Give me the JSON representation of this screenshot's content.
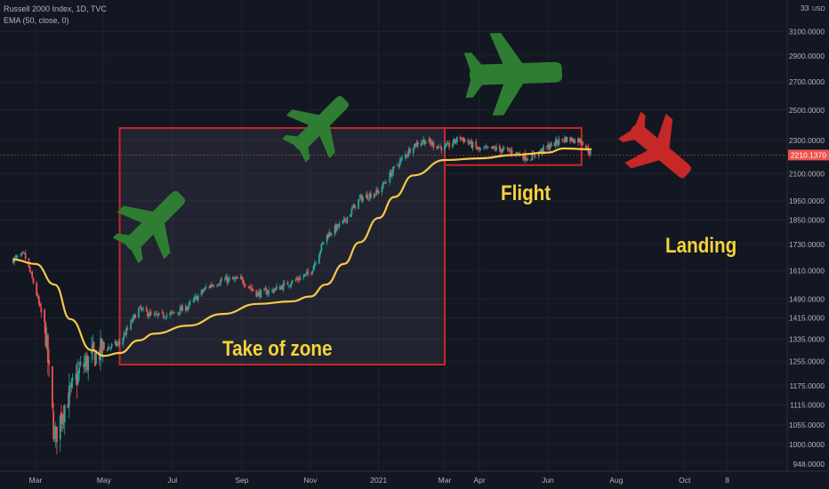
{
  "legend": {
    "symbol_line": "Russell 2000 Index, 1D, TVC",
    "indicator_line": "EMA (50, close, 0)"
  },
  "annotations": {
    "takeoff": "Take of zone",
    "flight": "Flight",
    "landing": "Landing"
  },
  "colors": {
    "background": "#131722",
    "candle_up": "#26a69a",
    "candle_down": "#ef5350",
    "ema": "#f7c948",
    "box": "#c62828",
    "plane_green": "#2e7d32",
    "plane_red": "#c62828",
    "annotation_text": "#f5d33c",
    "price_label_bg": "#ef5350"
  },
  "chart_data": {
    "type": "candlestick",
    "title": "Russell 2000 Index, 1D, TVC",
    "indicator": "EMA (50, close, 0)",
    "price_axis": {
      "currency": "USD",
      "top_label": "33",
      "ticks": [
        "3100.0000",
        "2900.0000",
        "2700.0000",
        "2500.0000",
        "2300.0000",
        "2100.0000",
        "1950.0000",
        "1850.0000",
        "1730.0000",
        "1610.0000",
        "1490.0000",
        "1415.0000",
        "1335.0000",
        "1255.0000",
        "1175.0000",
        "1115.0000",
        "1055.0000",
        "1000.0000",
        "948.0000"
      ],
      "scale": "log"
    },
    "time_axis": {
      "ticks": [
        "Mar",
        "May",
        "Jul",
        "Sep",
        "Nov",
        "2021",
        "Mar",
        "Apr",
        "Jun",
        "Aug",
        "Oct",
        "8"
      ]
    },
    "last_price": "2210.1370",
    "close_series": {
      "dates": [
        "2020-02-10",
        "2020-02-20",
        "2020-03-01",
        "2020-03-10",
        "2020-03-18",
        "2020-03-25",
        "2020-04-01",
        "2020-04-10",
        "2020-04-20",
        "2020-05-01",
        "2020-05-15",
        "2020-06-01",
        "2020-06-15",
        "2020-07-01",
        "2020-07-15",
        "2020-08-01",
        "2020-08-15",
        "2020-09-01",
        "2020-09-15",
        "2020-10-01",
        "2020-10-15",
        "2020-11-01",
        "2020-11-15",
        "2020-12-01",
        "2020-12-15",
        "2021-01-01",
        "2021-01-15",
        "2021-02-01",
        "2021-02-10",
        "2021-03-01",
        "2021-03-15",
        "2021-04-01",
        "2021-04-15",
        "2021-05-01",
        "2021-05-15",
        "2021-06-01",
        "2021-06-15",
        "2021-07-01",
        "2021-07-10"
      ],
      "values": [
        1660,
        1680,
        1530,
        1350,
        1010,
        1100,
        1150,
        1230,
        1270,
        1300,
        1320,
        1450,
        1420,
        1430,
        1460,
        1540,
        1570,
        1570,
        1510,
        1530,
        1560,
        1600,
        1770,
        1840,
        1960,
        2000,
        2130,
        2270,
        2300,
        2250,
        2320,
        2240,
        2250,
        2230,
        2190,
        2260,
        2310,
        2300,
        2210
      ]
    },
    "ema_series": {
      "dates": [
        "2020-02-10",
        "2020-03-01",
        "2020-03-18",
        "2020-04-01",
        "2020-04-20",
        "2020-05-01",
        "2020-05-15",
        "2020-06-01",
        "2020-06-15",
        "2020-07-15",
        "2020-08-15",
        "2020-09-15",
        "2020-10-15",
        "2020-11-01",
        "2020-11-15",
        "2020-12-01",
        "2020-12-15",
        "2021-01-01",
        "2021-01-15",
        "2021-02-01",
        "2021-03-01",
        "2021-04-01",
        "2021-05-01",
        "2021-06-01",
        "2021-06-15",
        "2021-07-10"
      ],
      "values": [
        1660,
        1640,
        1550,
        1410,
        1295,
        1275,
        1285,
        1330,
        1355,
        1385,
        1430,
        1470,
        1480,
        1500,
        1550,
        1640,
        1740,
        1860,
        1970,
        2090,
        2180,
        2190,
        2210,
        2225,
        2250,
        2245
      ]
    },
    "regions": [
      {
        "name": "take-off zone",
        "start": "2020-05-15",
        "end": "2021-03-01",
        "low": 1245,
        "high": 2380
      },
      {
        "name": "flight",
        "start": "2021-03-01",
        "end": "2021-07-01",
        "low": 2150,
        "high": 2380
      }
    ]
  }
}
